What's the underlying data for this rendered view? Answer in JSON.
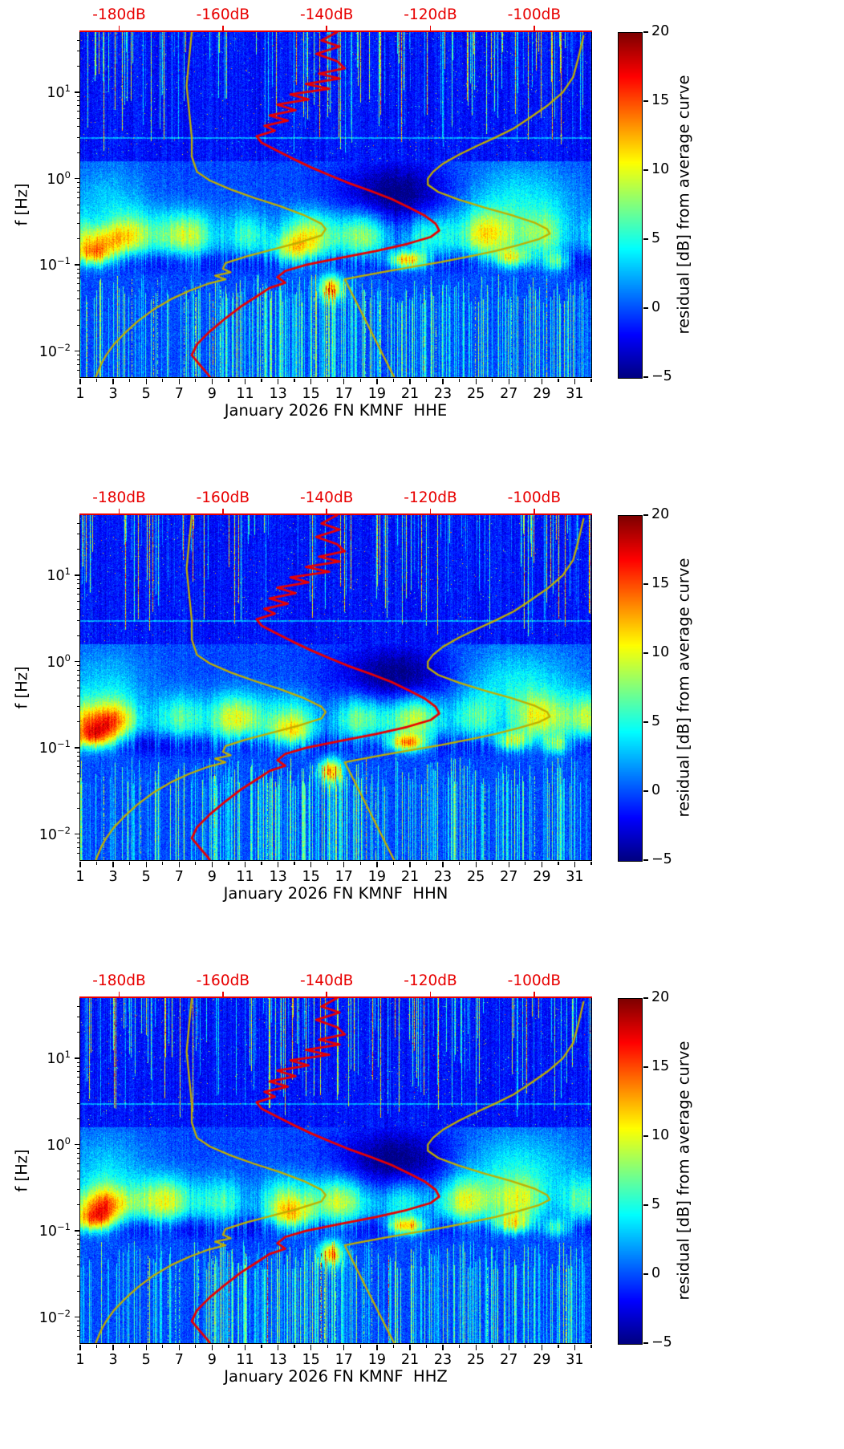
{
  "chart_data": {
    "type": "heatmap",
    "figure_description": "Three stacked PSD-residual spectrograms (seismic probabilistic power spectral density residuals vs time and frequency) for station FN KMNF, channels HHE, HHN, HHZ, January 2026. Red curve = average PSD in dB read on the red top axis; yellow curves = Peterson low/high noise model reference curves on the same dB axis.",
    "panels": [
      {
        "channel": "HHE",
        "xlabel": "January 2026 FN KMNF  HHE"
      },
      {
        "channel": "HHN",
        "xlabel": "January 2026 FN KMNF  HHN"
      },
      {
        "channel": "HHZ",
        "xlabel": "January 2026 FN KMNF  HHZ"
      }
    ],
    "shared": {
      "ylabel": "f [Hz]",
      "y_axis": {
        "scale": "log",
        "min_hz": 0.005,
        "max_hz": 50,
        "major_tick_exponents": [
          1,
          0,
          -1,
          -2
        ],
        "major_tick_exponent_labels": [
          "1",
          "0",
          "−1",
          "−2"
        ]
      },
      "x_axis": {
        "day_min": 1,
        "day_max": 32,
        "major_tick_days": [
          1,
          3,
          5,
          7,
          9,
          11,
          13,
          15,
          17,
          19,
          21,
          23,
          25,
          27,
          29,
          31
        ],
        "labels": [
          "1",
          "3",
          "5",
          "7",
          "9",
          "11",
          "13",
          "15",
          "17",
          "19",
          "21",
          "23",
          "25",
          "27",
          "29",
          "31"
        ]
      },
      "top_axis": {
        "color": "#e80000",
        "db_at_left_edge": -187.5,
        "db_at_right_edge": -89,
        "ticks": [
          {
            "db": -180,
            "label": "-180dB"
          },
          {
            "db": -160,
            "label": "-160dB"
          },
          {
            "db": -140,
            "label": "-140dB"
          },
          {
            "db": -120,
            "label": "-120dB"
          },
          {
            "db": -100,
            "label": "-100dB"
          }
        ]
      },
      "colorbar": {
        "label": "residual [dB] from average curve",
        "min": -5,
        "max": 20,
        "colormap": "jet",
        "tick_values": [
          20,
          15,
          10,
          5,
          0,
          -5
        ],
        "tick_labels": [
          "20",
          "15",
          "10",
          "5",
          "0",
          "−5"
        ]
      },
      "curves": {
        "mean_psd": {
          "color": "#e80000",
          "description": "average PSD curve in dB (top axis scale) vs frequency",
          "points_f_hz_db": [
            [
              50,
              -138
            ],
            [
              40,
              -141
            ],
            [
              34,
              -137.5
            ],
            [
              28,
              -142
            ],
            [
              23,
              -138
            ],
            [
              19,
              -136.5
            ],
            [
              16.5,
              -141.5
            ],
            [
              14.5,
              -137.5
            ],
            [
              12.5,
              -144
            ],
            [
              11,
              -139.5
            ],
            [
              9.5,
              -147
            ],
            [
              8.3,
              -143.5
            ],
            [
              7.2,
              -149.5
            ],
            [
              6.2,
              -146
            ],
            [
              5.4,
              -151
            ],
            [
              4.7,
              -147.5
            ],
            [
              4.1,
              -152
            ],
            [
              3.6,
              -150
            ],
            [
              3.1,
              -153.5
            ],
            [
              2.6,
              -152.5
            ],
            [
              2.1,
              -149.5
            ],
            [
              1.7,
              -146.5
            ],
            [
              1.35,
              -143
            ],
            [
              1.1,
              -139.5
            ],
            [
              0.9,
              -136
            ],
            [
              0.72,
              -131.5
            ],
            [
              0.58,
              -127.5
            ],
            [
              0.46,
              -124
            ],
            [
              0.37,
              -121
            ],
            [
              0.3,
              -119
            ],
            [
              0.25,
              -118.3
            ],
            [
              0.21,
              -120
            ],
            [
              0.175,
              -124.5
            ],
            [
              0.145,
              -130.5
            ],
            [
              0.12,
              -137.5
            ],
            [
              0.1,
              -144
            ],
            [
              0.085,
              -148
            ],
            [
              0.072,
              -149.5
            ],
            [
              0.062,
              -148
            ],
            [
              0.054,
              -151
            ],
            [
              0.043,
              -153.5
            ],
            [
              0.033,
              -156.5
            ],
            [
              0.024,
              -159.5
            ],
            [
              0.017,
              -162.5
            ],
            [
              0.012,
              -165
            ],
            [
              0.009,
              -166
            ],
            [
              0.007,
              -164.5
            ],
            [
              0.0055,
              -163
            ],
            [
              0.005,
              -162.5
            ]
          ]
        },
        "low_noise_model": {
          "color": "#bfae00",
          "description": "low-noise reference model (yellow, left curve)",
          "points_f_hz_db": [
            [
              50,
              -166
            ],
            [
              25,
              -166.5
            ],
            [
              12,
              -167
            ],
            [
              6,
              -166.5
            ],
            [
              3,
              -166
            ],
            [
              1.8,
              -166
            ],
            [
              1.2,
              -165
            ],
            [
              0.95,
              -162.5
            ],
            [
              0.75,
              -158.5
            ],
            [
              0.6,
              -154
            ],
            [
              0.48,
              -149
            ],
            [
              0.38,
              -144.5
            ],
            [
              0.3,
              -141
            ],
            [
              0.26,
              -140.2
            ],
            [
              0.22,
              -141
            ],
            [
              0.18,
              -145.5
            ],
            [
              0.15,
              -150.5
            ],
            [
              0.125,
              -155.5
            ],
            [
              0.105,
              -159.5
            ],
            [
              0.09,
              -160
            ],
            [
              0.082,
              -158.5
            ],
            [
              0.075,
              -161.5
            ],
            [
              0.068,
              -159.5
            ],
            [
              0.06,
              -163
            ],
            [
              0.05,
              -166.5
            ],
            [
              0.04,
              -170
            ],
            [
              0.03,
              -173.5
            ],
            [
              0.022,
              -176.5
            ],
            [
              0.016,
              -179
            ],
            [
              0.012,
              -181
            ],
            [
              0.009,
              -182.5
            ],
            [
              0.007,
              -183.5
            ],
            [
              0.005,
              -184.5
            ]
          ]
        },
        "high_noise_model": {
          "color": "#bfae00",
          "description": "high-noise reference model (yellow, right curve)",
          "points_f_hz_db": [
            [
              45,
              -90.5
            ],
            [
              25,
              -91.5
            ],
            [
              15,
              -92.5
            ],
            [
              10,
              -94.5
            ],
            [
              7,
              -97.5
            ],
            [
              5,
              -101
            ],
            [
              3.8,
              -104
            ],
            [
              3,
              -107.5
            ],
            [
              2.4,
              -111
            ],
            [
              1.9,
              -114.5
            ],
            [
              1.5,
              -117.5
            ],
            [
              1.2,
              -119.5
            ],
            [
              1.0,
              -120.5
            ],
            [
              0.85,
              -120.5
            ],
            [
              0.7,
              -118.5
            ],
            [
              0.57,
              -114.5
            ],
            [
              0.46,
              -109.5
            ],
            [
              0.38,
              -104.5
            ],
            [
              0.31,
              -100
            ],
            [
              0.26,
              -97.5
            ],
            [
              0.23,
              -97
            ],
            [
              0.2,
              -99
            ],
            [
              0.17,
              -103
            ],
            [
              0.145,
              -107.5
            ],
            [
              0.125,
              -112.5
            ],
            [
              0.108,
              -118
            ],
            [
              0.095,
              -123.5
            ],
            [
              0.083,
              -129
            ],
            [
              0.073,
              -134
            ],
            [
              0.068,
              -136.5
            ],
            [
              0.005,
              -127
            ]
          ]
        }
      },
      "heatmap_features": {
        "background_residual_db": 0,
        "microseism_band": {
          "f_center_hz": 0.22,
          "logf_sigma": 0.2,
          "base_amp_db": 6.2
        },
        "dark_band": {
          "f_center_hz": 0.112,
          "logf_sigma": 0.1,
          "amp_db": -3.2
        },
        "dark_patch": {
          "day": 20.2,
          "day_sigma": 2.4,
          "f_center_hz": 0.66,
          "amp_db": -5.2
        },
        "bright_patch_right": {
          "day": 27.5,
          "day_sigma": 2.6,
          "f_center_hz": 0.56,
          "amp_db": 4.2
        },
        "bright_patch_left": {
          "day": 2.5,
          "day_sigma": 1.8,
          "f_center_hz": 0.56,
          "amp_db": 3.0
        },
        "line_3hz_amp_db": 3.5,
        "hot_spots": [
          {
            "day": 1.8,
            "f_hz": 0.13,
            "amp_db": 12,
            "day_sigma": 0.9,
            "logf_sigma": 0.1
          },
          {
            "day": 2.3,
            "f_hz": 0.2,
            "amp_db": 7,
            "day_sigma": 1.2,
            "logf_sigma": 0.12
          },
          {
            "day": 20.8,
            "f_hz": 0.115,
            "amp_db": 13,
            "day_sigma": 0.8,
            "logf_sigma": 0.07
          },
          {
            "day": 16.2,
            "f_hz": 0.055,
            "amp_db": 12,
            "day_sigma": 0.5,
            "logf_sigma": 0.1
          },
          {
            "day": 27.2,
            "f_hz": 0.12,
            "amp_db": 9,
            "day_sigma": 0.8,
            "logf_sigma": 0.08
          },
          {
            "day": 13.8,
            "f_hz": 0.15,
            "amp_db": 7,
            "day_sigma": 0.9,
            "logf_sigma": 0.12
          },
          {
            "day": 29.8,
            "f_hz": 0.11,
            "amp_db": 7,
            "day_sigma": 0.6,
            "logf_sigma": 0.08
          }
        ],
        "high_freq_stripes": {
          "f_above_hz": 2,
          "probability": 0.17,
          "max_amp_db": 18
        },
        "low_freq_stripes": {
          "f_below_hz": 0.075,
          "dense_day_range": [
            9,
            17.5
          ]
        }
      }
    }
  }
}
